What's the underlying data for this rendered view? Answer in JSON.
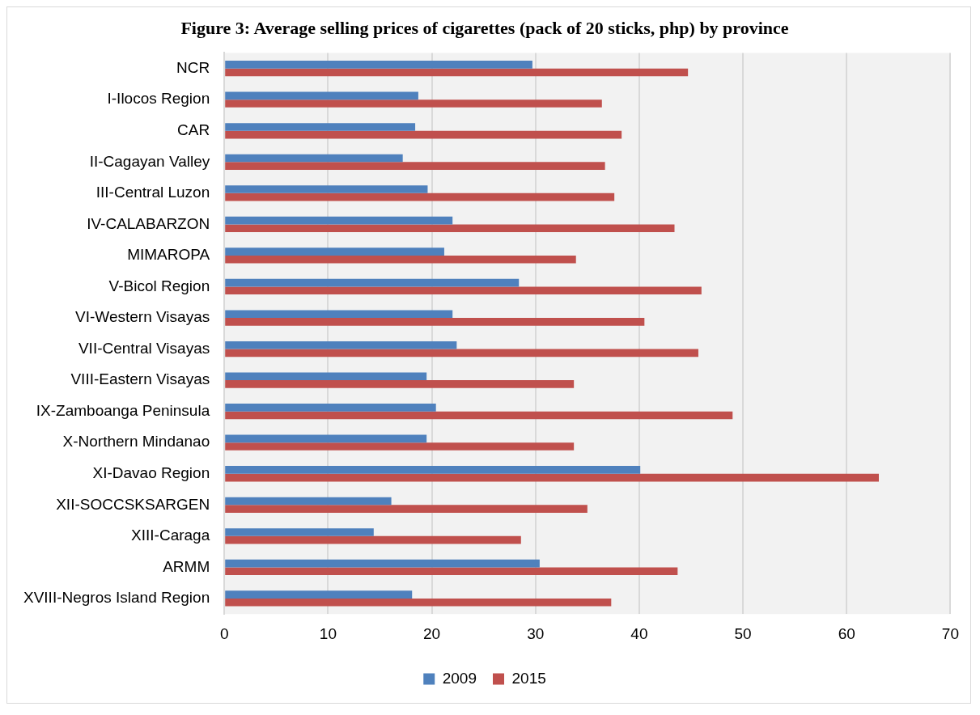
{
  "chart_data": {
    "type": "bar",
    "orientation": "horizontal",
    "title": "Figure 3: Average selling prices of cigarettes (pack of 20 sticks, php) by province",
    "categories": [
      "NCR",
      "I-Ilocos Region",
      "CAR",
      "II-Cagayan Valley",
      "III-Central Luzon",
      "IV-CALABARZON",
      "MIMAROPA",
      "V-Bicol Region",
      "VI-Western Visayas",
      "VII-Central Visayas",
      "VIII-Eastern Visayas",
      "IX-Zamboanga Peninsula",
      "X-Northern Mindanao",
      "XI-Davao Region",
      "XII-SOCCSKSARGEN",
      "XIII-Caraga",
      "ARMM",
      "XVIII-Negros Island Region"
    ],
    "series": [
      {
        "name": "2009",
        "color": "#4f81bd",
        "values": [
          29.7,
          18.7,
          18.4,
          17.2,
          19.6,
          22.0,
          21.2,
          28.4,
          22.0,
          22.4,
          19.5,
          20.4,
          19.5,
          40.1,
          16.1,
          14.4,
          30.4,
          18.1
        ]
      },
      {
        "name": "2015",
        "color": "#c0504d",
        "values": [
          44.7,
          36.4,
          38.3,
          36.7,
          37.6,
          43.4,
          33.9,
          46.0,
          40.5,
          45.7,
          33.7,
          49.0,
          33.7,
          63.1,
          35.0,
          28.6,
          43.7,
          37.3
        ]
      }
    ],
    "xlim": [
      0,
      70
    ],
    "xticks": [
      0,
      10,
      20,
      30,
      40,
      50,
      60,
      70
    ],
    "grid": "x",
    "legend": "bottom"
  }
}
